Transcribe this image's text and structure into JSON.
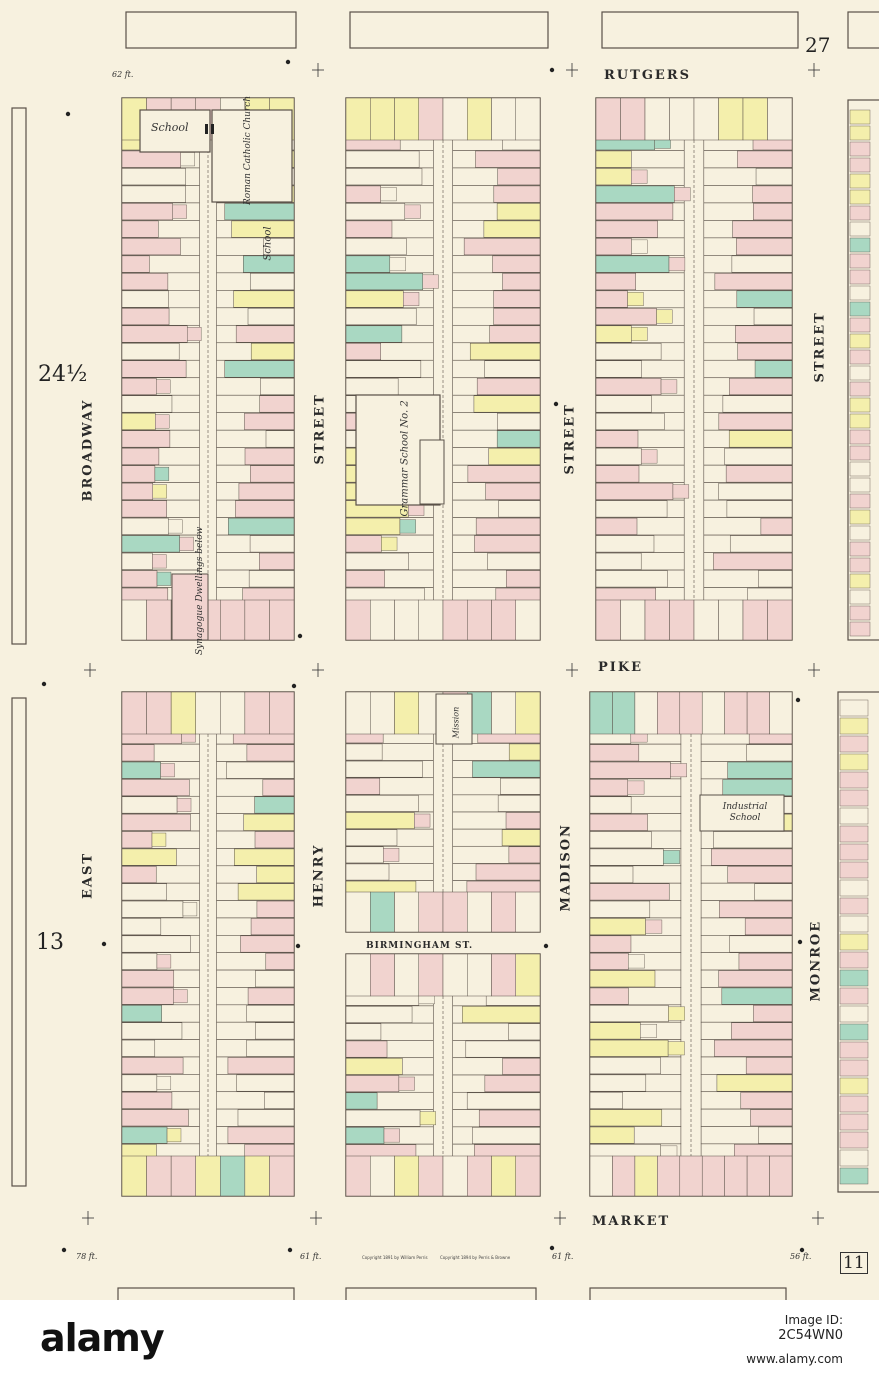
{
  "map": {
    "plate_number": "27",
    "corner_plate_number": "11",
    "ward_numbers": [
      "24½",
      "13"
    ],
    "streets": {
      "rutgers": "RUTGERS",
      "pike": "PIKE",
      "market": "MARKET",
      "broadway": "BROADWAY",
      "east": "EAST",
      "street_1": "STREET",
      "henry": "HENRY",
      "street_2": "STREET",
      "madison": "MADISON",
      "street_3": "STREET",
      "monroe": "MONROE",
      "birmingham": "BIRMINGHAM   ST."
    },
    "buildings": {
      "school_1": "School",
      "church": "Roman Catholic Church",
      "school_2": "School",
      "grammar_school": "Grammar School No. 2",
      "synagogue": "Synagogue Dwellings below",
      "mission": "Mission",
      "industrial_school": "Industrial School"
    },
    "street_widths": [
      "62 ft.",
      "78 ft.",
      "61 ft.",
      "61 ft.",
      "56 ft."
    ],
    "copyright_left": "Copyright 1891 by William Perris",
    "copyright_right": "Copyright 1894 by Perris & Browne",
    "colors": {
      "paper": "#f7f1df",
      "pink_brick": "#f1d3cf",
      "yellow_frame": "#f4efac",
      "teal_stone": "#a9d8c2",
      "line": "#5a5148"
    }
  },
  "footer": {
    "logo": "alamy",
    "image_id_label": "Image ID:",
    "image_id": "2C54WN0",
    "url": "www.alamy.com"
  }
}
